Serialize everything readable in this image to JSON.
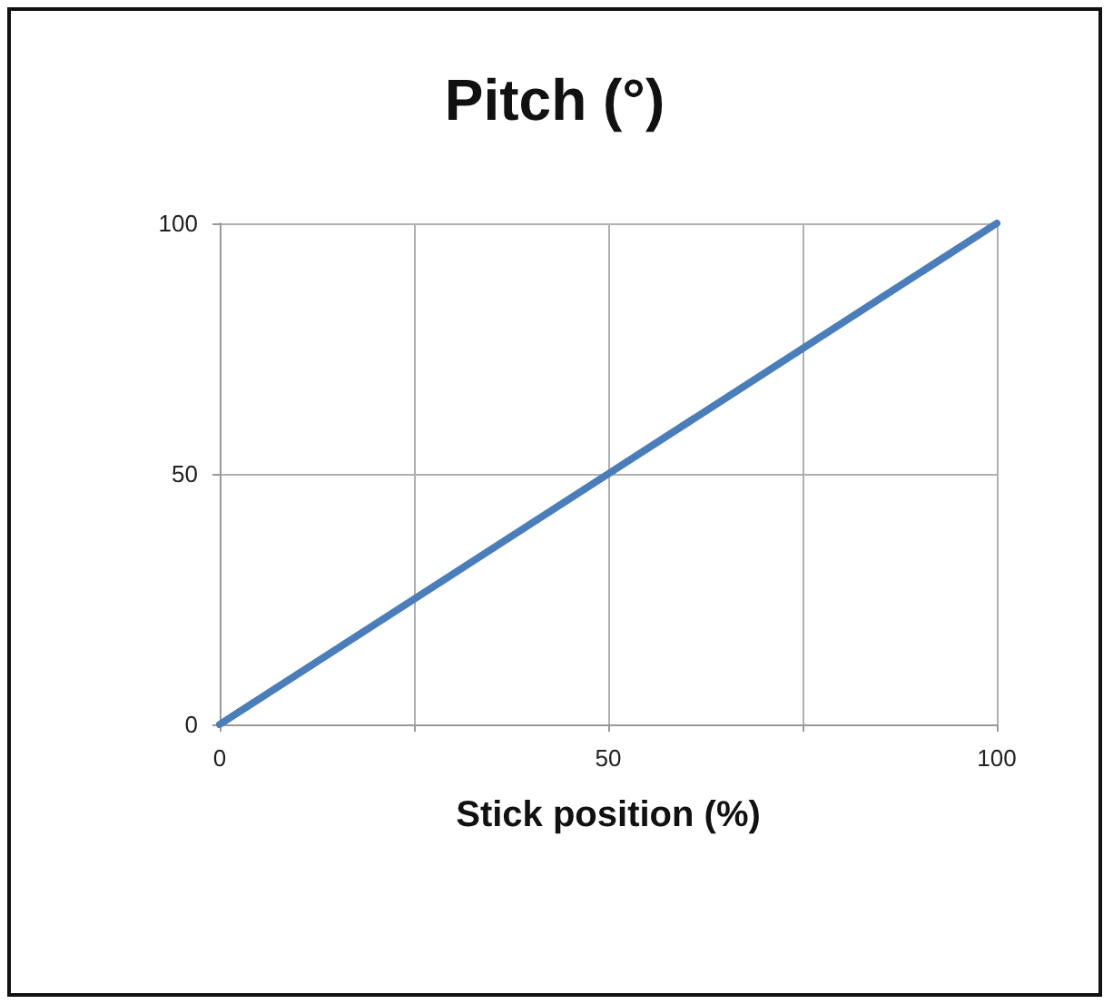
{
  "chart_data": {
    "type": "line",
    "title": "Pitch (°)",
    "xlabel": "Stick position (%)",
    "x": [
      0,
      100
    ],
    "series": [
      {
        "color": "#4a7ebb",
        "values": [
          0,
          100
        ]
      }
    ],
    "xlim": [
      0,
      100
    ],
    "ylim": [
      0,
      100
    ],
    "xticks": [
      0,
      {
        "value": 25,
        "label": null
      },
      50,
      {
        "value": 75,
        "label": null
      },
      100
    ],
    "yticks": [
      0,
      50,
      100
    ],
    "grid": true,
    "marker": "none",
    "line_style": "solid"
  }
}
